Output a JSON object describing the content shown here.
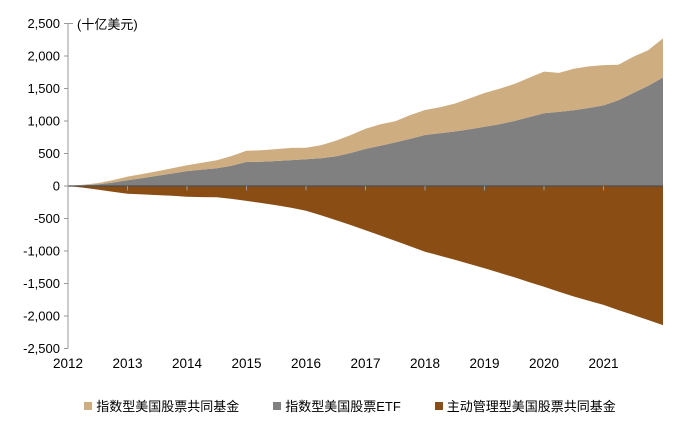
{
  "chart_data": {
    "type": "area",
    "stacked": true,
    "unit_label": "(十亿美元)",
    "title": "",
    "xlabel": "",
    "ylabel": "十亿美元",
    "xlim": [
      2012,
      2022
    ],
    "ylim": [
      -2500,
      2500
    ],
    "grid": false,
    "legend_position": "bottom",
    "ytick_values": [
      2500,
      2000,
      1500,
      1000,
      500,
      0,
      -500,
      -1000,
      -1500,
      -2000,
      -2500
    ],
    "ytick_labels": [
      "2,500",
      "2,000",
      "1,500",
      "1,000",
      "500",
      "0",
      "-500",
      "-1,000",
      "-1,500",
      "-2,000",
      "-2,500"
    ],
    "xtick_years": [
      2012,
      2013,
      2014,
      2015,
      2016,
      2017,
      2018,
      2019,
      2020,
      2021
    ],
    "xtick_labels": [
      "2012",
      "2013",
      "2014",
      "2015",
      "2016",
      "2017",
      "2018",
      "2019",
      "2020",
      "2021"
    ],
    "x": [
      2012.0,
      2012.25,
      2012.5,
      2012.75,
      2013.0,
      2013.25,
      2013.5,
      2013.75,
      2014.0,
      2014.25,
      2014.5,
      2014.75,
      2015.0,
      2015.25,
      2015.5,
      2015.75,
      2016.0,
      2016.25,
      2016.5,
      2016.75,
      2017.0,
      2017.25,
      2017.5,
      2017.75,
      2018.0,
      2018.25,
      2018.5,
      2018.75,
      2019.0,
      2019.25,
      2019.5,
      2019.75,
      2020.0,
      2020.25,
      2020.5,
      2020.75,
      2021.0,
      2021.25,
      2021.5,
      2021.75,
      2022.0
    ],
    "series": [
      {
        "name": "指数型美国股票共同基金",
        "color": "#CEAE80",
        "stack": "positive",
        "stack_level": 2,
        "values": [
          0,
          8,
          20,
          36,
          55,
          62,
          70,
          80,
          90,
          105,
          125,
          150,
          172,
          178,
          183,
          188,
          180,
          200,
          240,
          275,
          310,
          330,
          325,
          365,
          385,
          400,
          430,
          475,
          520,
          545,
          570,
          605,
          640,
          600,
          640,
          640,
          620,
          545,
          560,
          550,
          600
        ]
      },
      {
        "name": "指数型美国股票ETF",
        "color": "#808080",
        "stack": "positive",
        "stack_level": 1,
        "values": [
          0,
          10,
          25,
          52,
          90,
          122,
          158,
          192,
          230,
          252,
          272,
          312,
          370,
          372,
          385,
          398,
          410,
          428,
          455,
          508,
          570,
          620,
          670,
          725,
          785,
          812,
          838,
          872,
          910,
          950,
          1000,
          1060,
          1120,
          1140,
          1165,
          1200,
          1240,
          1320,
          1430,
          1540,
          1670
        ]
      },
      {
        "name": "主动管理型美国股票共同基金",
        "color": "#8A4E15",
        "stack": "negative",
        "stack_level": 1,
        "values": [
          0,
          -25,
          -55,
          -88,
          -120,
          -130,
          -140,
          -150,
          -165,
          -170,
          -172,
          -198,
          -230,
          -262,
          -295,
          -335,
          -380,
          -450,
          -525,
          -600,
          -680,
          -762,
          -845,
          -928,
          -1010,
          -1072,
          -1135,
          -1200,
          -1265,
          -1335,
          -1405,
          -1478,
          -1550,
          -1628,
          -1700,
          -1765,
          -1830,
          -1910,
          -1985,
          -2062,
          -2140
        ]
      }
    ],
    "axis_color": "#999999",
    "zero_line_color": "#4D4D4D",
    "text_color": "#000000"
  }
}
